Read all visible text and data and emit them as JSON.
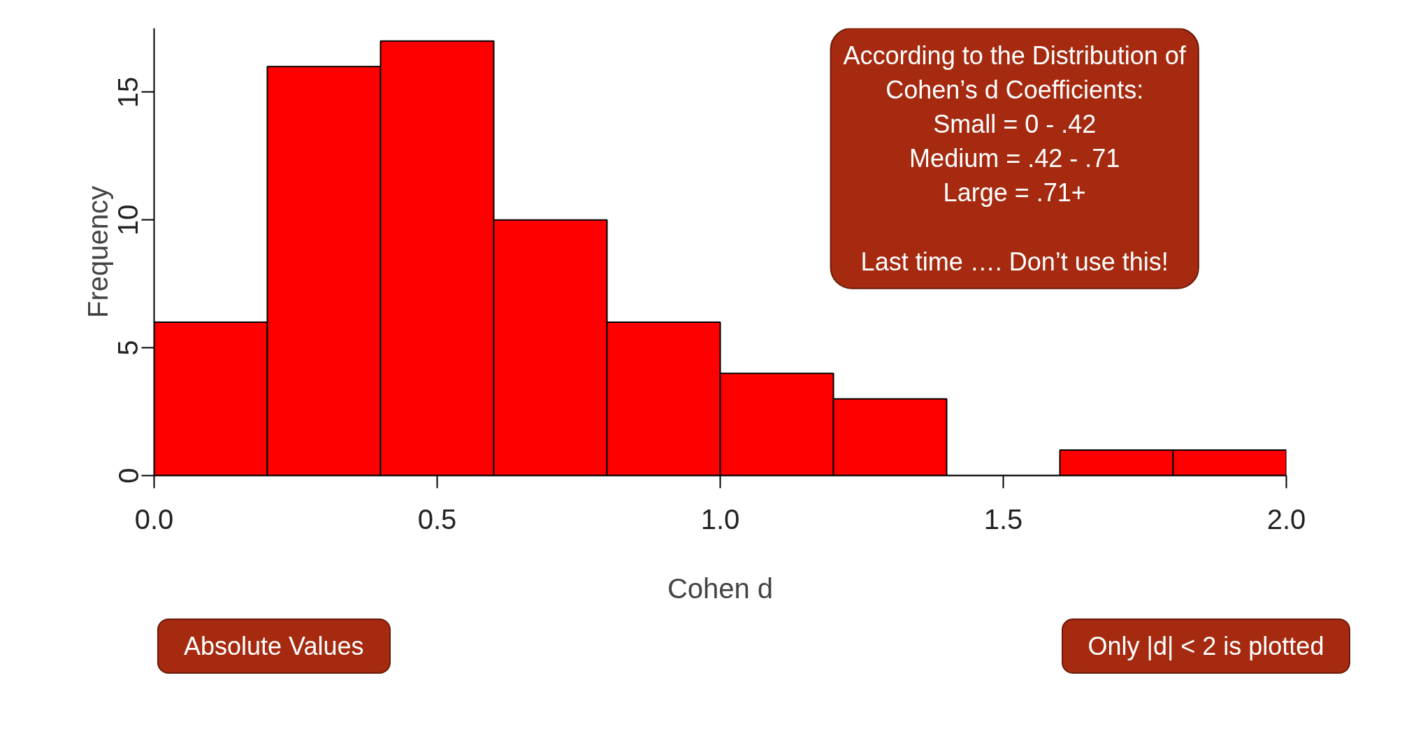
{
  "chart_data": {
    "type": "histogram",
    "xlabel": "Cohen d",
    "ylabel": "Frequency",
    "bins": [
      0,
      0.2,
      0.4,
      0.6,
      0.8,
      1.0,
      1.2,
      1.4,
      1.6,
      1.8,
      2.0
    ],
    "values": [
      6,
      16,
      17,
      10,
      6,
      4,
      3,
      0,
      1,
      1
    ],
    "color": "#ff0000",
    "xlim": [
      0,
      2
    ],
    "ylim": [
      0,
      17.5
    ],
    "xticks": [
      {
        "value": 0,
        "label": "0.0"
      },
      {
        "value": 0.5,
        "label": "0.5"
      },
      {
        "value": 1,
        "label": "1.0"
      },
      {
        "value": 1.5,
        "label": "1.5"
      },
      {
        "value": 2,
        "label": "2.0"
      }
    ],
    "yticks": [
      0,
      5,
      10,
      15
    ],
    "grid": false,
    "annotations": [
      "According to the Distribution of\nCohen’s d Coefficients:\nSmall = 0 - .42\nMedium = .42 - .71\nLarge = .71+\n\nLast time …. Don’t use this!",
      "Only |d| < 2 is plotted",
      "Absolute Values"
    ]
  }
}
